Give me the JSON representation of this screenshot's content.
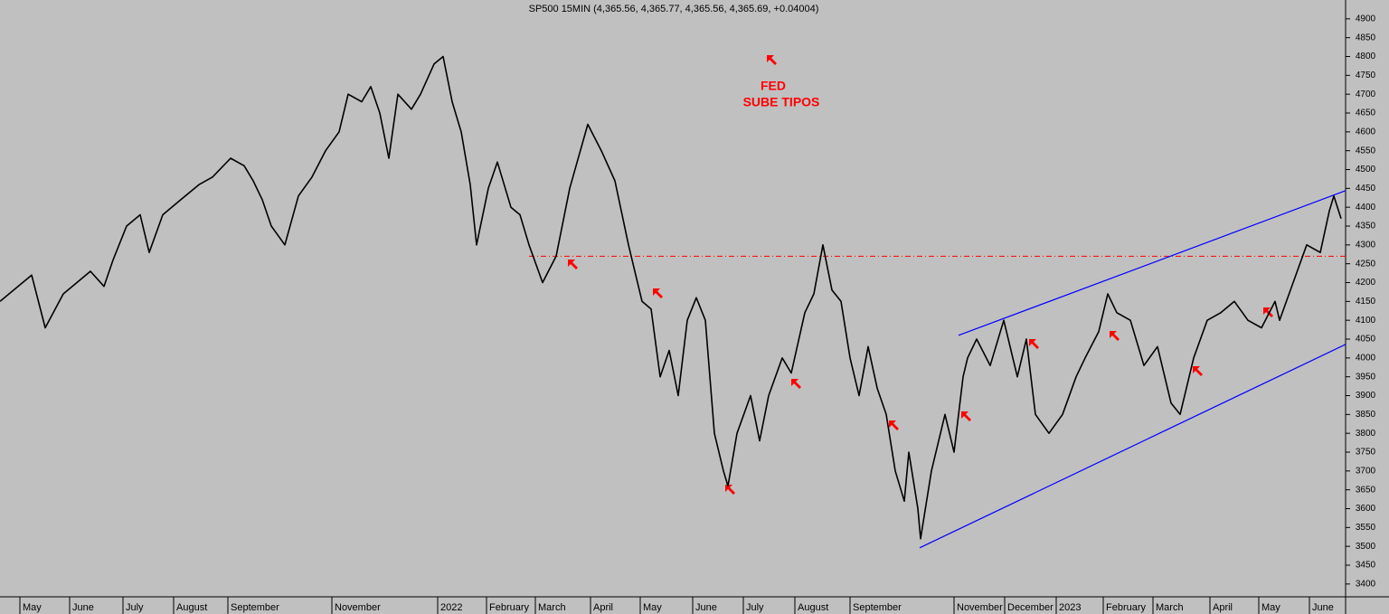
{
  "chart_data": {
    "type": "line",
    "title": "SP500 15MIN (4,365.56, 4,365.77, 4,365.56, 4,365.69, +0.04004)",
    "annotations": [
      "FED",
      "SUBE TIPOS"
    ],
    "color": "#000000",
    "x": [
      0,
      3.5,
      5,
      7,
      10,
      11.5,
      12.5,
      14,
      15.5,
      16.5,
      18,
      20,
      22,
      23.5,
      25.5,
      27,
      28,
      29,
      30,
      31.5,
      33,
      34.5,
      36,
      37.5,
      38.5,
      40,
      41,
      42,
      43,
      44,
      45.5,
      46.5,
      48,
      49,
      50,
      51,
      52,
      52.7,
      54,
      55,
      56.5,
      57.5,
      58.5,
      60,
      61.5,
      63,
      65,
      66.5,
      68,
      69.5,
      71,
      72,
      73,
      74,
      75,
      76,
      77,
      78,
      79,
      80,
      80.5,
      81.5,
      83,
      84,
      85,
      86.5,
      87.5,
      89,
      90,
      91,
      92,
      93,
      94,
      95,
      96,
      97,
      98,
      99,
      100,
      100.5,
      101.5,
      101.8,
      103,
      104.5,
      105.5,
      106.5,
      107,
      108,
      109.5,
      111,
      112.5,
      113.5,
      114.5,
      116,
      117.5,
      119,
      120,
      121.5,
      122.5,
      123.5,
      125,
      126.5,
      128,
      129.5,
      130.5,
      132,
      133.5,
      135,
      136.5,
      138,
      139.5,
      141,
      141.5,
      143,
      144.5,
      146,
      147,
      147.5,
      148.3
    ],
    "values": [
      4150,
      4220,
      4080,
      4170,
      4230,
      4190,
      4260,
      4350,
      4380,
      4280,
      4380,
      4420,
      4460,
      4480,
      4530,
      4510,
      4470,
      4420,
      4350,
      4300,
      4430,
      4480,
      4550,
      4600,
      4700,
      4680,
      4720,
      4650,
      4530,
      4700,
      4660,
      4700,
      4780,
      4800,
      4680,
      4600,
      4460,
      4300,
      4450,
      4520,
      4400,
      4380,
      4300,
      4200,
      4270,
      4450,
      4620,
      4550,
      4470,
      4300,
      4150,
      4130,
      3950,
      4020,
      3900,
      4100,
      4160,
      4100,
      3800,
      3700,
      3660,
      3800,
      3900,
      3780,
      3900,
      4000,
      3960,
      4120,
      4170,
      4300,
      4180,
      4150,
      4000,
      3900,
      4030,
      3920,
      3850,
      3700,
      3620,
      3750,
      3600,
      3520,
      3700,
      3850,
      3750,
      3950,
      4000,
      4050,
      3980,
      4100,
      3950,
      4050,
      3850,
      3800,
      3850,
      3950,
      4000,
      4070,
      4170,
      4120,
      4100,
      3980,
      4030,
      3880,
      3850,
      4000,
      4100,
      4120,
      4150,
      4100,
      4080,
      4150,
      4100,
      4200,
      4300,
      4280,
      4390,
      4430,
      4370
    ],
    "xlim": [
      0,
      148.8
    ],
    "xticks": [
      {
        "value": 2.2,
        "label": "May"
      },
      {
        "value": 7.7,
        "label": "June"
      },
      {
        "value": 13.6,
        "label": "July"
      },
      {
        "value": 19.2,
        "label": "August"
      },
      {
        "value": 25.2,
        "label": "September"
      },
      {
        "value": 36.7,
        "label": "November"
      },
      {
        "value": 48.4,
        "label": "2022"
      },
      {
        "value": 53.8,
        "label": "February"
      },
      {
        "value": 59.2,
        "label": "March"
      },
      {
        "value": 65.3,
        "label": "April"
      },
      {
        "value": 70.8,
        "label": "May"
      },
      {
        "value": 76.6,
        "label": "June"
      },
      {
        "value": 82.2,
        "label": "July"
      },
      {
        "value": 87.9,
        "label": "August"
      },
      {
        "value": 94,
        "label": "September"
      },
      {
        "value": 105.5,
        "label": "November"
      },
      {
        "value": 111.1,
        "label": "December"
      },
      {
        "value": 116.8,
        "label": "2023"
      },
      {
        "value": 122,
        "label": "February"
      },
      {
        "value": 127.5,
        "label": "March"
      },
      {
        "value": 133.8,
        "label": "April"
      },
      {
        "value": 139.2,
        "label": "May"
      },
      {
        "value": 144.8,
        "label": "June"
      }
    ],
    "ylim": [
      3366,
      4950
    ],
    "yticks": [
      3400,
      3450,
      3500,
      3550,
      3600,
      3650,
      3700,
      3750,
      3800,
      3850,
      3900,
      3950,
      4000,
      4050,
      4100,
      4150,
      4200,
      4250,
      4300,
      4350,
      4400,
      4450,
      4500,
      4550,
      4600,
      4650,
      4700,
      4750,
      4800,
      4850,
      4900
    ],
    "hline": {
      "value": 4270,
      "color": "#ff0000"
    },
    "channel": [
      {
        "x": [
          106,
          148.8
        ],
        "values": [
          4060,
          4444
        ],
        "color": "#0000ff"
      },
      {
        "x": [
          101.7,
          148.8
        ],
        "values": [
          3496,
          4036
        ],
        "color": "#0000ff"
      }
    ]
  }
}
